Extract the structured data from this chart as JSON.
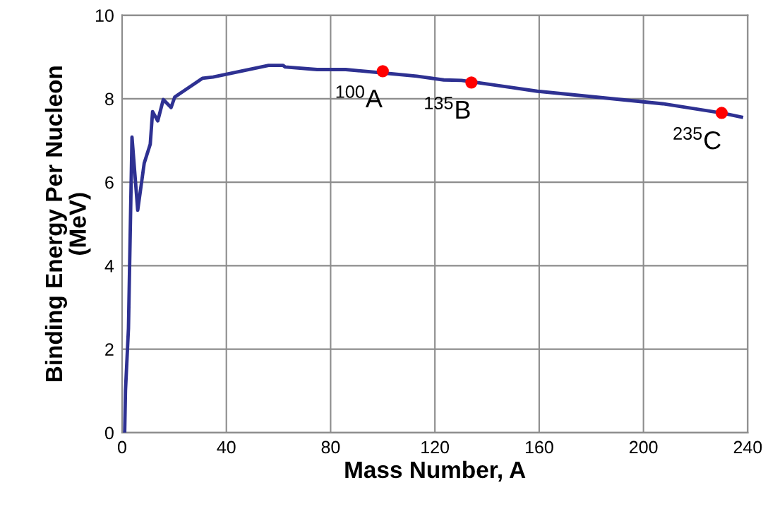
{
  "chart_data": {
    "type": "line",
    "xlabel": "Mass Number, A",
    "ylabel": "Binding Energy Per Nucleon\n(MeV)",
    "xlim": [
      0,
      240
    ],
    "ylim": [
      0,
      10
    ],
    "xticks": [
      0,
      40,
      80,
      120,
      160,
      200,
      240
    ],
    "yticks": [
      0,
      2,
      4,
      6,
      8,
      10
    ],
    "grid": true,
    "legend": false,
    "line_style": "solid",
    "marker": "none",
    "series": [
      {
        "color": "#2e3192",
        "x": [
          1,
          1.3,
          2.45,
          3.8,
          6.0,
          8.5,
          10.8,
          11.7,
          13.7,
          15.8,
          18.8,
          20.2,
          30.8,
          34.9,
          56.2,
          61.7,
          62.6,
          74.8,
          85.8,
          99.8,
          113,
          123.4,
          130.2,
          133.7,
          149.3,
          159.3,
          207.4,
          229.9,
          237.6
        ],
        "values": [
          0,
          1.0,
          2.5,
          7.08,
          5.33,
          6.46,
          6.91,
          7.69,
          7.47,
          7.98,
          7.79,
          8.04,
          8.49,
          8.52,
          8.8,
          8.8,
          8.76,
          8.7,
          8.7,
          8.62,
          8.54,
          8.45,
          8.44,
          8.41,
          8.27,
          8.18,
          7.88,
          7.66,
          7.56
        ]
      },
      {
        "type": "scatter",
        "marker": "circle",
        "color": "#ff0000",
        "x": [
          100,
          134,
          230
        ],
        "values": [
          8.66,
          8.39,
          7.66
        ]
      }
    ],
    "annotations": [
      {
        "text": "$^{100}$A",
        "x": 100,
        "y": 8.66
      },
      {
        "text": "$^{135}$B",
        "x": 134,
        "y": 8.39
      },
      {
        "text": "$^{235}$C",
        "x": 230,
        "y": 7.66
      }
    ]
  }
}
